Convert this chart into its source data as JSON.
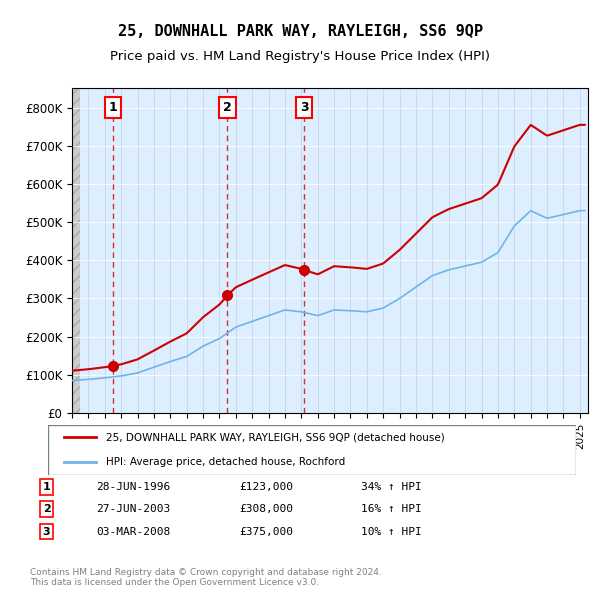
{
  "title": "25, DOWNHALL PARK WAY, RAYLEIGH, SS6 9QP",
  "subtitle": "Price paid vs. HM Land Registry's House Price Index (HPI)",
  "legend_line1": "25, DOWNHALL PARK WAY, RAYLEIGH, SS6 9QP (detached house)",
  "legend_line2": "HPI: Average price, detached house, Rochford",
  "footer": "Contains HM Land Registry data © Crown copyright and database right 2024.\nThis data is licensed under the Open Government Licence v3.0.",
  "sale_points": [
    {
      "num": 1,
      "date": "28-JUN-1996",
      "price": 123000,
      "pct": "34%",
      "year": 1996.49
    },
    {
      "num": 2,
      "date": "27-JUN-2003",
      "price": 308000,
      "pct": "16%",
      "year": 2003.49
    },
    {
      "num": 3,
      "date": "03-MAR-2008",
      "price": 375000,
      "pct": "10%",
      "year": 2008.17
    }
  ],
  "hpi_color": "#6eb4e8",
  "price_color": "#cc0000",
  "dashed_color": "#cc0000",
  "marker_color": "#cc0000",
  "background_hatch_color": "#e8e8e8",
  "plot_bg_color": "#ddeeff",
  "ylim": [
    0,
    850000
  ],
  "xlim_start": 1994.0,
  "xlim_end": 2025.5
}
